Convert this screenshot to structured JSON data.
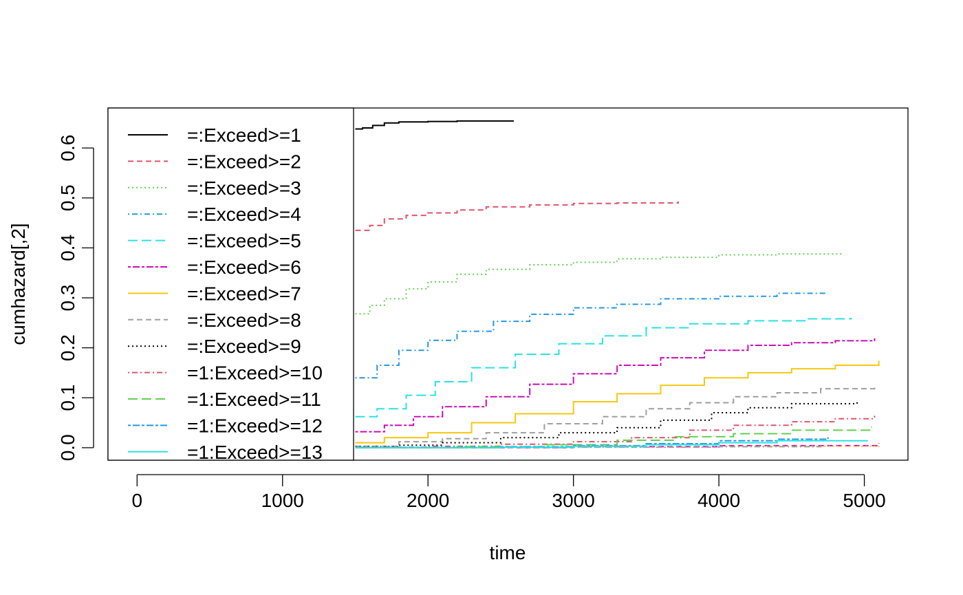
{
  "chart_data": {
    "type": "line",
    "xlabel": "time",
    "ylabel": "cumhazard[,2]",
    "xlim": [
      -200,
      5300
    ],
    "ylim": [
      -0.025,
      0.68
    ],
    "x_ticks": [
      0,
      1000,
      2000,
      3000,
      4000,
      5000
    ],
    "x_tick_labels": [
      "0",
      "1000",
      "2000",
      "3000",
      "4000",
      "5000"
    ],
    "y_ticks": [
      0.0,
      0.1,
      0.2,
      0.3,
      0.4,
      0.5,
      0.6
    ],
    "y_tick_labels": [
      "0.0",
      "0.1",
      "0.2",
      "0.3",
      "0.4",
      "0.5",
      "0.6"
    ],
    "grid": false,
    "legend_position": "top-left",
    "series": [
      {
        "name": "=:Exceed>=1",
        "color": "#000000",
        "dash": "solid",
        "x": [
          1500,
          1550,
          1620,
          1700,
          1800,
          2000,
          2200,
          2400,
          2590
        ],
        "y": [
          0.638,
          0.64,
          0.645,
          0.65,
          0.652,
          0.653,
          0.654,
          0.654,
          0.654
        ]
      },
      {
        "name": "=:Exceed>=2",
        "color": "#DF536B",
        "dash": "dashed",
        "x": [
          1500,
          1600,
          1700,
          1850,
          2000,
          2200,
          2400,
          2700,
          3000,
          3300,
          3720
        ],
        "y": [
          0.435,
          0.445,
          0.458,
          0.465,
          0.47,
          0.476,
          0.482,
          0.486,
          0.489,
          0.49,
          0.493
        ]
      },
      {
        "name": "=:Exceed>=3",
        "color": "#61D04F",
        "dash": "dotted",
        "x": [
          1500,
          1600,
          1700,
          1850,
          2000,
          2200,
          2400,
          2700,
          3000,
          3300,
          3600,
          4000,
          4400,
          4860
        ],
        "y": [
          0.268,
          0.285,
          0.298,
          0.318,
          0.332,
          0.347,
          0.357,
          0.366,
          0.371,
          0.378,
          0.381,
          0.386,
          0.388,
          0.388
        ]
      },
      {
        "name": "=:Exceed>=4",
        "color": "#2297E6",
        "dash": "dashdot",
        "x": [
          1500,
          1650,
          1800,
          2000,
          2200,
          2450,
          2700,
          3000,
          3300,
          3600,
          4000,
          4400,
          4740
        ],
        "y": [
          0.14,
          0.165,
          0.195,
          0.215,
          0.233,
          0.253,
          0.267,
          0.28,
          0.287,
          0.298,
          0.303,
          0.309,
          0.311
        ]
      },
      {
        "name": "=:Exceed>=5",
        "color": "#28E2E5",
        "dash": "longdash",
        "x": [
          1500,
          1650,
          1850,
          2050,
          2300,
          2600,
          2900,
          3200,
          3500,
          3800,
          4200,
          4600,
          4910
        ],
        "y": [
          0.062,
          0.078,
          0.105,
          0.132,
          0.16,
          0.187,
          0.208,
          0.224,
          0.24,
          0.248,
          0.254,
          0.258,
          0.26
        ]
      },
      {
        "name": "=:Exceed>=6",
        "color": "#CD0BBC",
        "dash": "twodash",
        "x": [
          1500,
          1700,
          1900,
          2100,
          2400,
          2700,
          3000,
          3300,
          3600,
          3900,
          4200,
          4500,
          4800,
          5070
        ],
        "y": [
          0.032,
          0.045,
          0.062,
          0.082,
          0.102,
          0.127,
          0.148,
          0.165,
          0.18,
          0.195,
          0.205,
          0.21,
          0.214,
          0.219
        ]
      },
      {
        "name": "=:Exceed>=7",
        "color": "#F5C710",
        "dash": "solid",
        "x": [
          1500,
          1700,
          2000,
          2300,
          2600,
          3000,
          3300,
          3600,
          3900,
          4200,
          4500,
          4800,
          5100
        ],
        "y": [
          0.01,
          0.02,
          0.03,
          0.05,
          0.068,
          0.092,
          0.108,
          0.125,
          0.14,
          0.15,
          0.158,
          0.165,
          0.174
        ]
      },
      {
        "name": "=:Exceed>=8",
        "color": "#9E9E9E",
        "dash": "dashed",
        "x": [
          1500,
          1800,
          2100,
          2400,
          2800,
          3200,
          3500,
          3800,
          4100,
          4400,
          4700,
          5070
        ],
        "y": [
          0.003,
          0.012,
          0.018,
          0.03,
          0.048,
          0.062,
          0.078,
          0.09,
          0.102,
          0.11,
          0.118,
          0.126
        ]
      },
      {
        "name": "=:Exceed>=9",
        "color": "#000000",
        "dash": "dotted",
        "x": [
          1500,
          1800,
          2100,
          2500,
          2900,
          3300,
          3600,
          3950,
          4200,
          4500,
          4950
        ],
        "y": [
          0.002,
          0.005,
          0.01,
          0.02,
          0.03,
          0.04,
          0.055,
          0.07,
          0.08,
          0.088,
          0.092
        ]
      },
      {
        "name": "=1:Exceed>=10",
        "color": "#DF536B",
        "dash": "dashdot",
        "x": [
          1500,
          2000,
          2500,
          3000,
          3400,
          3800,
          4100,
          4500,
          4800,
          5070
        ],
        "y": [
          0.001,
          0.003,
          0.007,
          0.012,
          0.02,
          0.035,
          0.045,
          0.052,
          0.058,
          0.064
        ]
      },
      {
        "name": "=1:Exceed>=11",
        "color": "#61D04F",
        "dash": "longdash",
        "x": [
          1500,
          2200,
          2800,
          3300,
          3700,
          4100,
          4500,
          5050
        ],
        "y": [
          0.0,
          0.002,
          0.006,
          0.015,
          0.022,
          0.028,
          0.035,
          0.042
        ]
      },
      {
        "name": "=1:Exceed>=12",
        "color": "#2297E6",
        "dash": "twodash",
        "x": [
          1500,
          2500,
          3000,
          3500,
          4000,
          4400,
          4750
        ],
        "y": [
          0.0,
          0.002,
          0.004,
          0.008,
          0.014,
          0.017,
          0.021
        ]
      },
      {
        "name": "=1:Exceed>=13",
        "color": "#28E2E5",
        "dash": "solid",
        "x": [
          1500,
          2500,
          3000,
          3500,
          4000,
          4400,
          5020
        ],
        "y": [
          0.0,
          0.001,
          0.003,
          0.006,
          0.01,
          0.014,
          0.015
        ]
      }
    ],
    "extra_lines": [
      {
        "color": "#CD0BBC",
        "dash": "dashed",
        "x": [
          1500,
          3000,
          4000,
          5100
        ],
        "y": [
          0.0,
          0.002,
          0.004,
          0.009
        ]
      },
      {
        "color": "#F5C710",
        "dash": "dotted",
        "x": [
          1500,
          3000,
          4000,
          5100
        ],
        "y": [
          0.0,
          0.001,
          0.003,
          0.006
        ]
      },
      {
        "color": "#9E9E9E",
        "dash": "dashdot",
        "x": [
          1500,
          3000,
          4000,
          4700
        ],
        "y": [
          0.0,
          0.001,
          0.002,
          0.003
        ]
      }
    ]
  }
}
